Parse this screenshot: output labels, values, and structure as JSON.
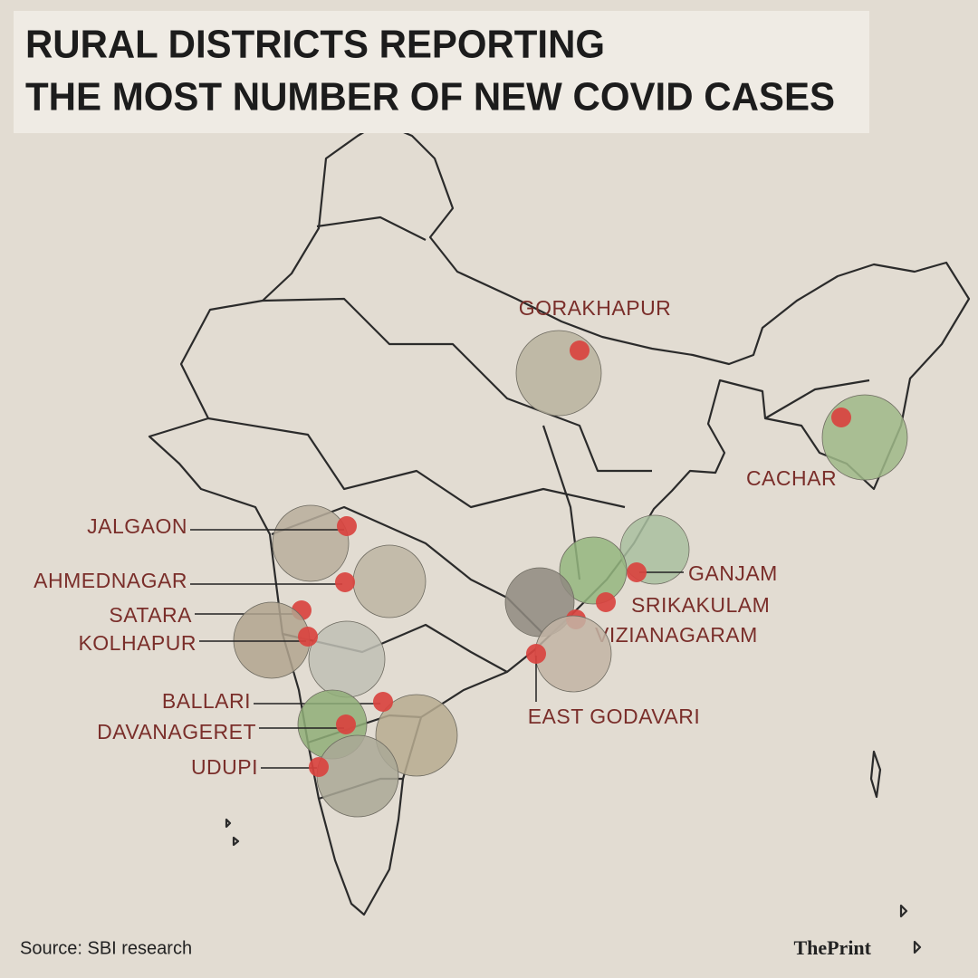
{
  "title": [
    "RURAL DISTRICTS REPORTING",
    "THE MOST NUMBER OF NEW COVID CASES"
  ],
  "districts": [
    "GORAKHAPUR",
    "CACHAR",
    "JALGAON",
    "AHMEDNAGAR",
    "SATARA",
    "KOLHAPUR",
    "BALLARI",
    "DAVANAGERET",
    "UDUPI",
    "GANJAM",
    "SRIKAKULAM",
    "VIZIANAGARAM",
    "EAST GODAVARI"
  ],
  "source": "Source: SBI research",
  "logo": "ThePrint"
}
